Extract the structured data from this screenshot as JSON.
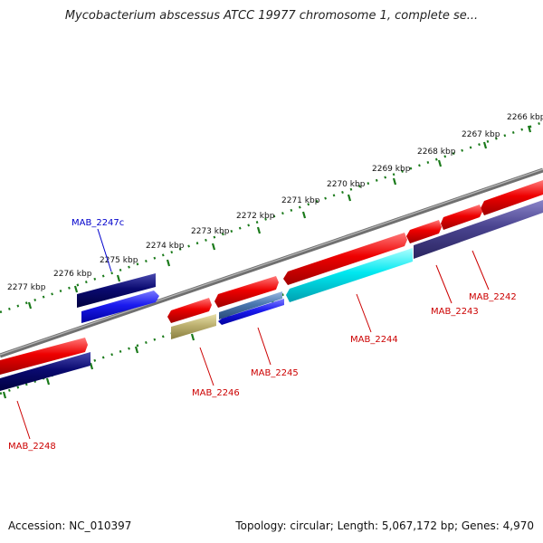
{
  "title": "Mycobacterium abscessus ATCC 19977 chromosome 1, complete se...",
  "accession_text": "Accession: NC_010397",
  "summary_text": "Topology: circular; Length: 5,067,172 bp; Genes: 4,970",
  "colors": {
    "backbone": "#808080",
    "dots": "#1a7a1a",
    "forward_cds": "#ee0000",
    "reverse_cds": "#0a0a70",
    "label_red": "#cc0000",
    "label_blue": "#0000cc"
  },
  "scale_labels": [
    {
      "id": "2266",
      "text": "2266 kbp"
    },
    {
      "id": "2267",
      "text": "2267 kbp"
    },
    {
      "id": "2268",
      "text": "2268 kbp"
    },
    {
      "id": "2269",
      "text": "2269 kbp"
    },
    {
      "id": "2270",
      "text": "2270 kbp"
    },
    {
      "id": "2271",
      "text": "2271 kbp"
    },
    {
      "id": "2272",
      "text": "2272 kbp"
    },
    {
      "id": "2273",
      "text": "2273 kbp"
    },
    {
      "id": "2274",
      "text": "2274 kbp"
    },
    {
      "id": "2275",
      "text": "2275 kbp"
    },
    {
      "id": "2276",
      "text": "2276 kbp"
    },
    {
      "id": "2277",
      "text": "2277 kbp"
    }
  ],
  "gene_labels": [
    {
      "id": "mab-2247c",
      "text": "MAB_2247c",
      "color": "#0000cc"
    },
    {
      "id": "mab-2242",
      "text": "MAB_2242",
      "color": "#cc0000"
    },
    {
      "id": "mab-2243",
      "text": "MAB_2243",
      "color": "#cc0000"
    },
    {
      "id": "mab-2244",
      "text": "MAB_2244",
      "color": "#cc0000"
    },
    {
      "id": "mab-2245",
      "text": "MAB_2245",
      "color": "#cc0000"
    },
    {
      "id": "mab-2246",
      "text": "MAB_2246",
      "color": "#cc0000"
    },
    {
      "id": "mab-2248",
      "text": "MAB_2248",
      "color": "#cc0000"
    }
  ]
}
